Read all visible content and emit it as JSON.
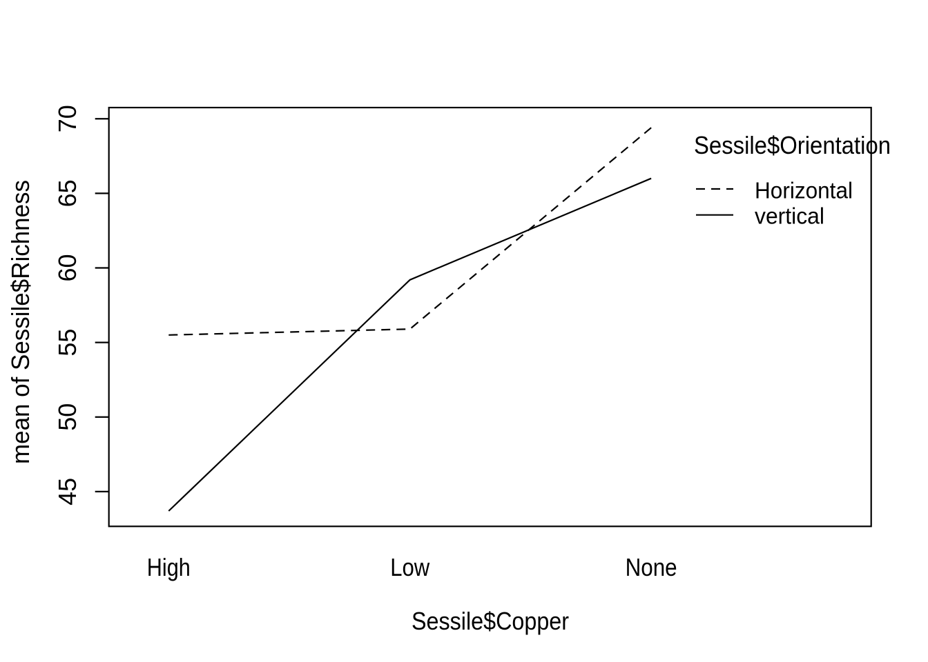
{
  "chart_data": {
    "type": "line",
    "title": "",
    "categories": [
      "High",
      "Low",
      "None"
    ],
    "series": [
      {
        "name": "Horizontal",
        "style": "dashed",
        "values": [
          55.5,
          55.9,
          69.4
        ]
      },
      {
        "name": "vertical",
        "style": "solid",
        "values": [
          43.7,
          59.2,
          66.0
        ]
      }
    ],
    "xlabel": "Sessile$Copper",
    "ylabel": "mean of  Sessile$Richness",
    "yticks": [
      45,
      50,
      55,
      60,
      65,
      70
    ],
    "ylim": [
      42.67,
      70.75
    ],
    "grid": false,
    "legend": {
      "title": "Sessile$Orientation",
      "entries": [
        "Horizontal",
        "vertical"
      ],
      "position": "top-right"
    },
    "line_color": "#000000",
    "background": "#ffffff"
  }
}
